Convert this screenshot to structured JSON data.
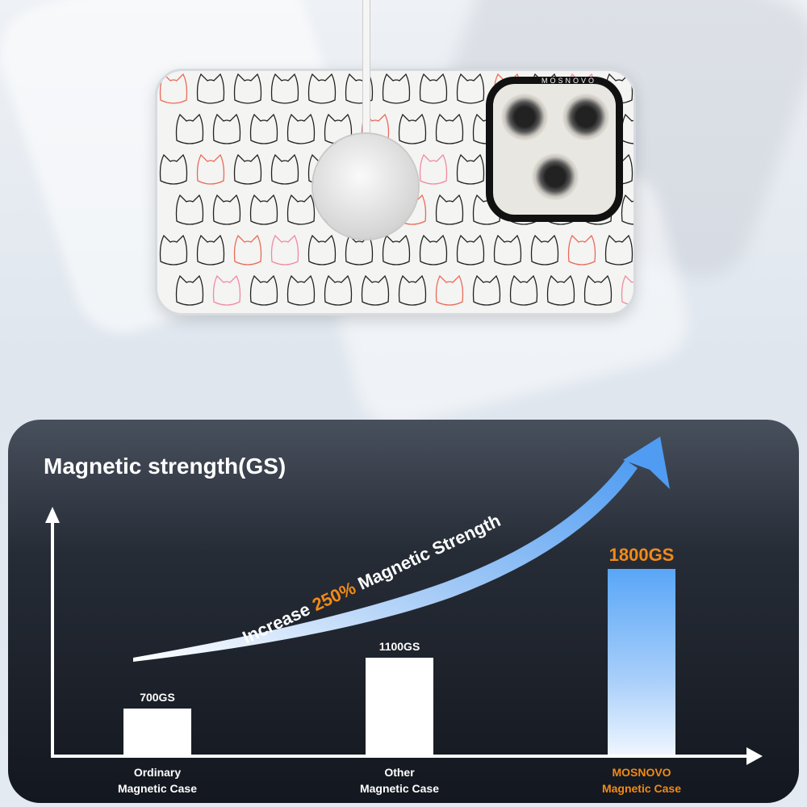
{
  "product": {
    "brand_logo": "MOSNOVO"
  },
  "chart_data": {
    "type": "bar",
    "title": "Magnetic strength(GS)",
    "categories": [
      [
        "Ordinary",
        "Magnetic Case"
      ],
      [
        "Other",
        "Magnetic Case"
      ],
      [
        "MOSNOVO",
        "Magnetic Case"
      ]
    ],
    "values": [
      700,
      1100,
      1800
    ],
    "data_labels": [
      "700GS",
      "1100GS",
      "1800GS"
    ],
    "unit": "GS",
    "highlight_index": 2,
    "annotation": {
      "prefix": "Increase ",
      "highlight": "250%",
      "suffix": " Magnetic Strength"
    },
    "colors": {
      "bar": "#ffffff",
      "highlight_bar": "#59a6f7",
      "highlight_text": "#f28a16",
      "arrow": "#4f9cf2"
    },
    "grid": false
  }
}
